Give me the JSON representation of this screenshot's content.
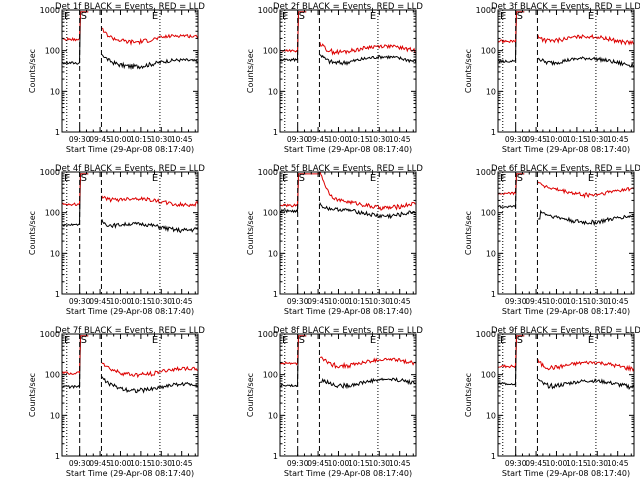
{
  "chart_data": [
    {
      "type": "line",
      "title": "Det 1f BLACK = Events, RED = LLD",
      "xlabel": "Start Time (29-Apr-08 08:17:40)",
      "ylabel": "Counts/sec",
      "ylog": true,
      "ylim": [
        1,
        1000
      ],
      "yticks": [
        "1",
        "10",
        "100",
        "1000"
      ],
      "xticks": [
        "09:30",
        "09:45",
        "10:00",
        "10:15",
        "10:30",
        "10:45"
      ],
      "markers": {
        "s_label": "S",
        "e_label": "E"
      },
      "series": [
        {
          "name": "BLACK = Events",
          "color": "#000000",
          "profile": "low",
          "value": 50,
          "baseline": 50
        },
        {
          "name": "RED = LLD",
          "color": "#dd0000",
          "profile": "high",
          "value": 200,
          "baseline": 190
        }
      ]
    },
    {
      "type": "line",
      "title": "Det 2f BLACK = Events, RED = LLD",
      "xlabel": "Start Time (29-Apr-08 08:17:40)",
      "ylabel": "Counts/sec",
      "ylog": true,
      "ylim": [
        1,
        1000
      ],
      "yticks": [
        "1",
        "10",
        "100",
        "1000"
      ],
      "xticks": [
        "09:30",
        "09:45",
        "10:00",
        "10:15",
        "10:30",
        "10:45"
      ],
      "markers": {
        "s_label": "S",
        "e_label": "E"
      },
      "series": [
        {
          "name": "BLACK = Events",
          "color": "#000000",
          "profile": "low",
          "value": 60,
          "baseline": 60
        },
        {
          "name": "RED = LLD",
          "color": "#dd0000",
          "profile": "high",
          "value": 110,
          "baseline": 100
        }
      ]
    },
    {
      "type": "line",
      "title": "Det 3f BLACK = Events, RED = LLD",
      "xlabel": "Start Time (29-Apr-08 08:17:40)",
      "ylabel": "Counts/sec",
      "ylog": true,
      "ylim": [
        1,
        1000
      ],
      "yticks": [
        "1",
        "10",
        "100",
        "1000"
      ],
      "xticks": [
        "09:30",
        "09:45",
        "10:00",
        "10:15",
        "10:30",
        "10:45"
      ],
      "markers": {
        "s_label": "S",
        "e_label": "E"
      },
      "series": [
        {
          "name": "BLACK = Events",
          "color": "#000000",
          "profile": "low",
          "value": 55,
          "baseline": 55
        },
        {
          "name": "RED = LLD",
          "color": "#dd0000",
          "profile": "high",
          "value": 190,
          "baseline": 170
        }
      ]
    },
    {
      "type": "line",
      "title": "Det 4f BLACK = Events, RED = LLD",
      "xlabel": "Start Time (29-Apr-08 08:17:40)",
      "ylabel": "Counts/sec",
      "ylog": true,
      "ylim": [
        1,
        1000
      ],
      "yticks": [
        "1",
        "10",
        "100",
        "1000"
      ],
      "xticks": [
        "09:30",
        "09:45",
        "10:00",
        "10:15",
        "10:30",
        "10:45"
      ],
      "markers": {
        "s_label": "S",
        "e_label": "E"
      },
      "series": [
        {
          "name": "BLACK = Events",
          "color": "#000000",
          "profile": "low",
          "value": 45,
          "baseline": 50
        },
        {
          "name": "RED = LLD",
          "color": "#dd0000",
          "profile": "high",
          "value": 190,
          "baseline": 160
        }
      ]
    },
    {
      "type": "line",
      "title": "Det 5f BLACK = Events, RED = LLD",
      "xlabel": "Start Time (29-Apr-08 08:17:40)",
      "ylabel": "Counts/sec",
      "ylog": true,
      "ylim": [
        1,
        1000
      ],
      "yticks": [
        "1",
        "10",
        "100",
        "1000"
      ],
      "xticks": [
        "09:30",
        "09:45",
        "10:00",
        "10:15",
        "10:30",
        "10:45"
      ],
      "markers": {
        "s_label": "S",
        "e_label": "E"
      },
      "series": [
        {
          "name": "BLACK = Events",
          "color": "#000000",
          "profile": "low",
          "value": 100,
          "baseline": 110
        },
        {
          "name": "RED = LLD",
          "color": "#dd0000",
          "profile": "peak",
          "value": 160,
          "baseline": 150
        }
      ]
    },
    {
      "type": "line",
      "title": "Det 6f BLACK = Events, RED = LLD",
      "xlabel": "Start Time (29-Apr-08 08:17:40)",
      "ylabel": "Counts/sec",
      "ylog": true,
      "ylim": [
        1,
        1000
      ],
      "yticks": [
        "1",
        "10",
        "100",
        "1000"
      ],
      "xticks": [
        "09:30",
        "09:45",
        "10:00",
        "10:15",
        "10:30",
        "10:45"
      ],
      "markers": {
        "s_label": "S",
        "e_label": "E"
      },
      "series": [
        {
          "name": "BLACK = Events",
          "color": "#000000",
          "profile": "gap",
          "value": 70,
          "baseline": 140
        },
        {
          "name": "RED = LLD",
          "color": "#dd0000",
          "profile": "high",
          "value": 330,
          "baseline": 300
        }
      ]
    },
    {
      "type": "line",
      "title": "Det 7f BLACK = Events, RED = LLD",
      "xlabel": "Start Time (29-Apr-08 08:17:40)",
      "ylabel": "Counts/sec",
      "ylog": true,
      "ylim": [
        1,
        1000
      ],
      "yticks": [
        "1",
        "10",
        "100",
        "1000"
      ],
      "xticks": [
        "09:30",
        "09:45",
        "10:00",
        "10:15",
        "10:30",
        "10:45"
      ],
      "markers": {
        "s_label": "S",
        "e_label": "E"
      },
      "series": [
        {
          "name": "BLACK = Events",
          "color": "#000000",
          "profile": "low",
          "value": 50,
          "baseline": 50
        },
        {
          "name": "RED = LLD",
          "color": "#dd0000",
          "profile": "high",
          "value": 120,
          "baseline": 110
        }
      ]
    },
    {
      "type": "line",
      "title": "Det 8f BLACK = Events, RED = LLD",
      "xlabel": "Start Time (29-Apr-08 08:17:40)",
      "ylabel": "Counts/sec",
      "ylog": true,
      "ylim": [
        1,
        1000
      ],
      "yticks": [
        "1",
        "10",
        "100",
        "1000"
      ],
      "xticks": [
        "09:30",
        "09:45",
        "10:00",
        "10:15",
        "10:30",
        "10:45"
      ],
      "markers": {
        "s_label": "S",
        "e_label": "E"
      },
      "series": [
        {
          "name": "BLACK = Events",
          "color": "#000000",
          "profile": "gap",
          "value": 65,
          "baseline": 55
        },
        {
          "name": "RED = LLD",
          "color": "#dd0000",
          "profile": "high",
          "value": 200,
          "baseline": 190
        }
      ]
    },
    {
      "type": "line",
      "title": "Det 9f BLACK = Events, RED = LLD",
      "xlabel": "Start Time (29-Apr-08 08:17:40)",
      "ylabel": "Counts/sec",
      "ylog": true,
      "ylim": [
        1,
        1000
      ],
      "yticks": [
        "1",
        "10",
        "100",
        "1000"
      ],
      "xticks": [
        "09:30",
        "09:45",
        "10:00",
        "10:15",
        "10:30",
        "10:45"
      ],
      "markers": {
        "s_label": "S",
        "e_label": "E"
      },
      "series": [
        {
          "name": "BLACK = Events",
          "color": "#000000",
          "profile": "low",
          "value": 60,
          "baseline": 60
        },
        {
          "name": "RED = LLD",
          "color": "#dd0000",
          "profile": "high",
          "value": 170,
          "baseline": 160
        }
      ]
    }
  ]
}
